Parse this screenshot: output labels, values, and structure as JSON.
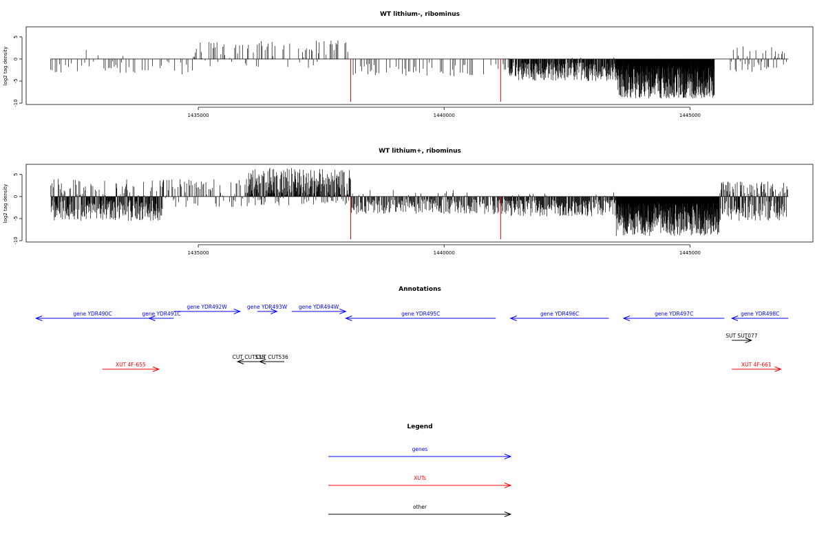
{
  "chart_data": [
    {
      "type": "bar",
      "title": "WT lithium-, ribominus",
      "ylabel": "log2 tag density",
      "xlabel": "",
      "xlim": [
        1431500,
        1447500
      ],
      "ylim": [
        -10,
        7
      ],
      "xticks": [
        1435000,
        1440000,
        1445000
      ],
      "xtick_labels": [
        "1435000",
        "1440000",
        "1445000"
      ],
      "yticks": [
        -10,
        -5,
        0,
        5
      ],
      "ytick_labels": [
        "-10",
        "-5",
        "0",
        "5"
      ],
      "marker_lines": [
        1438100,
        1441150
      ],
      "marker_color": "#ff0000",
      "regions": [
        {
          "x0": 1432000,
          "x1": 1434900,
          "lo": -3.5,
          "hi": 3,
          "pos_prob": 0.1,
          "step": 30,
          "sparsity": 0.55
        },
        {
          "x0": 1434900,
          "x1": 1436000,
          "lo": -2,
          "hi": 4,
          "pos_prob": 0.85,
          "step": 20,
          "sparsity": 0.45
        },
        {
          "x0": 1436000,
          "x1": 1438100,
          "lo": -2.5,
          "hi": 4.5,
          "pos_prob": 0.8,
          "step": 20,
          "sparsity": 0.45
        },
        {
          "x0": 1438100,
          "x1": 1441300,
          "lo": -4,
          "hi": 0.5,
          "pos_prob": 0.02,
          "step": 25,
          "sparsity": 0.55
        },
        {
          "x0": 1441300,
          "x1": 1443500,
          "lo": -5,
          "hi": 0.5,
          "pos_prob": 0.02,
          "step": 8,
          "sparsity": 0.1
        },
        {
          "x0": 1443500,
          "x1": 1445500,
          "lo": -9,
          "hi": 0,
          "pos_prob": 0,
          "step": 5,
          "sparsity": 0
        },
        {
          "x0": 1445800,
          "x1": 1447000,
          "lo": -3,
          "hi": 3,
          "pos_prob": 0.55,
          "step": 20,
          "sparsity": 0.4
        }
      ]
    },
    {
      "type": "bar",
      "title": "WT lithium+, ribominus",
      "ylabel": "log2 tag density",
      "xlabel": "",
      "xlim": [
        1431500,
        1447500
      ],
      "ylim": [
        -10,
        7
      ],
      "xticks": [
        1435000,
        1440000,
        1445000
      ],
      "xtick_labels": [
        "1435000",
        "1440000",
        "1445000"
      ],
      "yticks": [
        -10,
        -5,
        0,
        5
      ],
      "ytick_labels": [
        "-10",
        "-5",
        "0",
        "5"
      ],
      "marker_lines": [
        1438100,
        1441150
      ],
      "marker_color": "#ff0000",
      "regions": [
        {
          "x0": 1432000,
          "x1": 1434300,
          "lo": -5.5,
          "hi": 4,
          "pos_prob": 0.2,
          "step": 8,
          "sparsity": 0.05
        },
        {
          "x0": 1434300,
          "x1": 1436000,
          "lo": -2.5,
          "hi": 4,
          "pos_prob": 0.55,
          "step": 15,
          "sparsity": 0.3
        },
        {
          "x0": 1436000,
          "x1": 1438100,
          "lo": -2,
          "hi": 6.5,
          "pos_prob": 0.85,
          "step": 8,
          "sparsity": 0.05
        },
        {
          "x0": 1438100,
          "x1": 1441300,
          "lo": -4,
          "hi": 1.5,
          "pos_prob": 0.05,
          "step": 12,
          "sparsity": 0.2
        },
        {
          "x0": 1441300,
          "x1": 1443500,
          "lo": -4.5,
          "hi": 1,
          "pos_prob": 0.05,
          "step": 10,
          "sparsity": 0.1
        },
        {
          "x0": 1443500,
          "x1": 1445600,
          "lo": -9,
          "hi": 0,
          "pos_prob": 0,
          "step": 5,
          "sparsity": 0
        },
        {
          "x0": 1445600,
          "x1": 1447000,
          "lo": -5.5,
          "hi": 3.5,
          "pos_prob": 0.45,
          "step": 8,
          "sparsity": 0.1
        }
      ]
    }
  ],
  "annotations": {
    "title": "Annotations",
    "colors": {
      "gene": "#0000ff",
      "xut": "#ff0000",
      "other": "#000000"
    },
    "features": [
      {
        "name": "gene YDR490C",
        "kind": "gene",
        "start": 1431700,
        "end": 1434000,
        "dir": "left",
        "track": 2
      },
      {
        "name": "gene YDR491C",
        "kind": "gene",
        "start": 1434000,
        "end": 1434500,
        "dir": "left",
        "track": 2
      },
      {
        "name": "gene YDR492W",
        "kind": "gene",
        "start": 1434500,
        "end": 1435850,
        "dir": "right",
        "track": 1
      },
      {
        "name": "gene YDR493W",
        "kind": "gene",
        "start": 1436200,
        "end": 1436600,
        "dir": "right",
        "track": 1
      },
      {
        "name": "gene YDR494W",
        "kind": "gene",
        "start": 1436900,
        "end": 1438000,
        "dir": "right",
        "track": 1
      },
      {
        "name": "gene YDR495C",
        "kind": "gene",
        "start": 1438000,
        "end": 1441050,
        "dir": "left",
        "track": 2
      },
      {
        "name": "gene YDR496C",
        "kind": "gene",
        "start": 1441350,
        "end": 1443350,
        "dir": "left",
        "track": 2
      },
      {
        "name": "gene YDR497C",
        "kind": "gene",
        "start": 1443650,
        "end": 1445700,
        "dir": "left",
        "track": 2
      },
      {
        "name": "gene YDR498C",
        "kind": "gene",
        "start": 1445850,
        "end": 1447000,
        "dir": "left",
        "track": 2
      },
      {
        "name": "SUT SUT077",
        "kind": "other",
        "start": 1445850,
        "end": 1446250,
        "dir": "right",
        "track": 3
      },
      {
        "name": "CUT CUT535",
        "kind": "other",
        "start": 1435800,
        "end": 1436250,
        "dir": "left",
        "track": 4
      },
      {
        "name": "CUT CUT536",
        "kind": "other",
        "start": 1436250,
        "end": 1436750,
        "dir": "left",
        "track": 4
      },
      {
        "name": "XUT 4F-655",
        "kind": "xut",
        "start": 1433050,
        "end": 1434200,
        "dir": "right",
        "track": 5
      },
      {
        "name": "XUT 4F-661",
        "kind": "xut",
        "start": 1445850,
        "end": 1446850,
        "dir": "right",
        "track": 5
      }
    ]
  },
  "legend": {
    "title": "Legend",
    "items": [
      {
        "label": "genes",
        "color": "#0000ff"
      },
      {
        "label": "XUTs",
        "color": "#ff0000"
      },
      {
        "label": "other",
        "color": "#000000"
      }
    ]
  }
}
